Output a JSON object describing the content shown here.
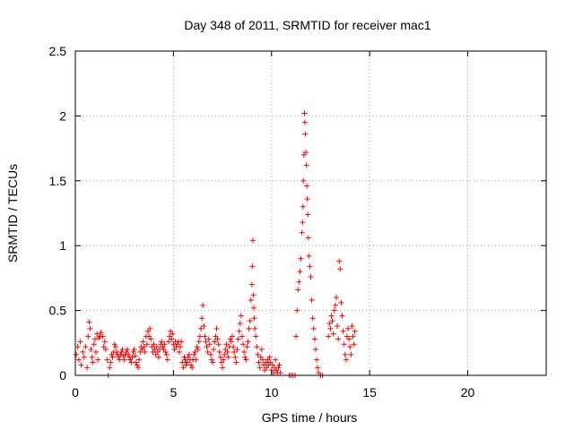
{
  "chart_data": {
    "type": "scatter",
    "title": "Day 348 of 2011, SRMTID for receiver mac1",
    "xlabel": "GPS time / hours",
    "ylabel": "SRMTID / TECUs",
    "xlim": [
      0,
      24
    ],
    "ylim": [
      0,
      2.5
    ],
    "xticks": [
      0,
      5,
      10,
      15,
      20
    ],
    "xtick_labels": [
      "0",
      "5",
      "10",
      "15",
      "20"
    ],
    "yticks": [
      0,
      0.5,
      1,
      1.5,
      2,
      2.5
    ],
    "ytick_labels": [
      "0",
      "0.5",
      "1",
      "1.5",
      "2",
      "2.5"
    ],
    "grid": true,
    "marker": "+",
    "series": [
      {
        "name": "mac1",
        "color": "#ff0000",
        "points": [
          [
            0.05,
            0.16
          ],
          [
            0.12,
            0.22
          ],
          [
            0.18,
            0.12
          ],
          [
            0.25,
            0.26
          ],
          [
            0.3,
            0.08
          ],
          [
            0.38,
            0.18
          ],
          [
            0.45,
            0.14
          ],
          [
            0.52,
            0.22
          ],
          [
            0.6,
            0.06
          ],
          [
            0.65,
            0.3
          ],
          [
            0.7,
            0.41
          ],
          [
            0.75,
            0.36
          ],
          [
            0.8,
            0.2
          ],
          [
            0.85,
            0.14
          ],
          [
            0.9,
            0.1
          ],
          [
            0.95,
            0.24
          ],
          [
            1.0,
            0.28
          ],
          [
            1.05,
            0.18
          ],
          [
            1.1,
            0.32
          ],
          [
            1.15,
            0.12
          ],
          [
            1.2,
            0.29
          ],
          [
            1.25,
            0.3
          ],
          [
            1.3,
            0.33
          ],
          [
            1.4,
            0.3
          ],
          [
            1.45,
            0.22
          ],
          [
            1.5,
            0.26
          ],
          [
            1.55,
            0.2
          ],
          [
            1.62,
            0.12
          ],
          [
            1.68,
            0.0
          ],
          [
            1.75,
            0.06
          ],
          [
            1.8,
            0.1
          ],
          [
            1.85,
            0.16
          ],
          [
            1.9,
            0.14
          ],
          [
            1.95,
            0.18
          ],
          [
            2.0,
            0.24
          ],
          [
            2.05,
            0.22
          ],
          [
            2.1,
            0.18
          ],
          [
            2.15,
            0.16
          ],
          [
            2.2,
            0.14
          ],
          [
            2.25,
            0.12
          ],
          [
            2.3,
            0.16
          ],
          [
            2.35,
            0.18
          ],
          [
            2.4,
            0.2
          ],
          [
            2.45,
            0.15
          ],
          [
            2.5,
            0.12
          ],
          [
            2.55,
            0.16
          ],
          [
            2.6,
            0.18
          ],
          [
            2.65,
            0.2
          ],
          [
            2.7,
            0.16
          ],
          [
            2.75,
            0.14
          ],
          [
            2.8,
            0.12
          ],
          [
            2.85,
            0.1
          ],
          [
            2.9,
            0.14
          ],
          [
            2.95,
            0.18
          ],
          [
            3.0,
            0.2
          ],
          [
            3.05,
            0.15
          ],
          [
            3.1,
            0.1
          ],
          [
            3.15,
            0.08
          ],
          [
            3.2,
            0.06
          ],
          [
            3.25,
            0.12
          ],
          [
            3.3,
            0.18
          ],
          [
            3.35,
            0.22
          ],
          [
            3.4,
            0.2
          ],
          [
            3.45,
            0.26
          ],
          [
            3.5,
            0.22
          ],
          [
            3.55,
            0.18
          ],
          [
            3.6,
            0.3
          ],
          [
            3.65,
            0.24
          ],
          [
            3.7,
            0.34
          ],
          [
            3.75,
            0.3
          ],
          [
            3.8,
            0.36
          ],
          [
            3.85,
            0.28
          ],
          [
            3.9,
            0.22
          ],
          [
            3.95,
            0.18
          ],
          [
            4.0,
            0.24
          ],
          [
            4.05,
            0.2
          ],
          [
            4.1,
            0.16
          ],
          [
            4.15,
            0.22
          ],
          [
            4.2,
            0.18
          ],
          [
            4.25,
            0.14
          ],
          [
            4.3,
            0.2
          ],
          [
            4.35,
            0.24
          ],
          [
            4.4,
            0.26
          ],
          [
            4.45,
            0.22
          ],
          [
            4.5,
            0.2
          ],
          [
            4.55,
            0.24
          ],
          [
            4.6,
            0.18
          ],
          [
            4.65,
            0.16
          ],
          [
            4.7,
            0.12
          ],
          [
            4.75,
            0.26
          ],
          [
            4.8,
            0.3
          ],
          [
            4.85,
            0.34
          ],
          [
            4.9,
            0.28
          ],
          [
            4.95,
            0.32
          ],
          [
            5.0,
            0.24
          ],
          [
            5.05,
            0.2
          ],
          [
            5.1,
            0.26
          ],
          [
            5.15,
            0.22
          ],
          [
            5.2,
            0.24
          ],
          [
            5.25,
            0.26
          ],
          [
            5.3,
            0.18
          ],
          [
            5.35,
            0.22
          ],
          [
            5.4,
            0.26
          ],
          [
            5.45,
            0.1
          ],
          [
            5.5,
            0.06
          ],
          [
            5.55,
            0.14
          ],
          [
            5.6,
            0.12
          ],
          [
            5.65,
            0.08
          ],
          [
            5.7,
            0.1
          ],
          [
            5.75,
            0.14
          ],
          [
            5.8,
            0.16
          ],
          [
            5.85,
            0.12
          ],
          [
            5.9,
            0.08
          ],
          [
            5.95,
            0.06
          ],
          [
            6.0,
            0.12
          ],
          [
            6.05,
            0.16
          ],
          [
            6.1,
            0.18
          ],
          [
            6.15,
            0.12
          ],
          [
            6.2,
            0.22
          ],
          [
            6.25,
            0.2
          ],
          [
            6.3,
            0.26
          ],
          [
            6.35,
            0.3
          ],
          [
            6.4,
            0.36
          ],
          [
            6.45,
            0.44
          ],
          [
            6.5,
            0.54
          ],
          [
            6.55,
            0.38
          ],
          [
            6.6,
            0.3
          ],
          [
            6.65,
            0.26
          ],
          [
            6.7,
            0.22
          ],
          [
            6.75,
            0.18
          ],
          [
            6.8,
            0.28
          ],
          [
            6.85,
            0.24
          ],
          [
            6.9,
            0.16
          ],
          [
            6.95,
            0.12
          ],
          [
            7.0,
            0.1
          ],
          [
            7.05,
            0.2
          ],
          [
            7.1,
            0.26
          ],
          [
            7.15,
            0.3
          ],
          [
            7.2,
            0.36
          ],
          [
            7.25,
            0.28
          ],
          [
            7.3,
            0.24
          ],
          [
            7.35,
            0.18
          ],
          [
            7.4,
            0.14
          ],
          [
            7.45,
            0.1
          ],
          [
            7.5,
            0.06
          ],
          [
            7.55,
            0.12
          ],
          [
            7.6,
            0.16
          ],
          [
            7.65,
            0.2
          ],
          [
            7.7,
            0.24
          ],
          [
            7.75,
            0.18
          ],
          [
            7.8,
            0.14
          ],
          [
            7.85,
            0.22
          ],
          [
            7.9,
            0.28
          ],
          [
            7.95,
            0.26
          ],
          [
            8.0,
            0.3
          ],
          [
            8.05,
            0.22
          ],
          [
            8.1,
            0.18
          ],
          [
            8.15,
            0.14
          ],
          [
            8.2,
            0.1
          ],
          [
            8.25,
            0.2
          ],
          [
            8.3,
            0.28
          ],
          [
            8.35,
            0.34
          ],
          [
            8.4,
            0.4
          ],
          [
            8.45,
            0.46
          ],
          [
            8.5,
            0.3
          ],
          [
            8.55,
            0.24
          ],
          [
            8.6,
            0.18
          ],
          [
            8.65,
            0.14
          ],
          [
            8.7,
            0.12
          ],
          [
            8.75,
            0.22
          ],
          [
            8.8,
            0.26
          ],
          [
            8.85,
            0.36
          ],
          [
            8.9,
            0.42
          ],
          [
            8.95,
            0.58
          ],
          [
            9.0,
            0.7
          ],
          [
            9.02,
            0.84
          ],
          [
            9.05,
            1.04
          ],
          [
            9.08,
            0.62
          ],
          [
            9.1,
            0.52
          ],
          [
            9.12,
            0.44
          ],
          [
            9.15,
            0.36
          ],
          [
            9.2,
            0.3
          ],
          [
            9.25,
            0.22
          ],
          [
            9.3,
            0.16
          ],
          [
            9.35,
            0.1
          ],
          [
            9.4,
            0.06
          ],
          [
            9.45,
            0.14
          ],
          [
            9.5,
            0.2
          ],
          [
            9.55,
            0.12
          ],
          [
            9.6,
            0.08
          ],
          [
            9.65,
            0.04
          ],
          [
            9.7,
            0.1
          ],
          [
            9.75,
            0.06
          ],
          [
            9.8,
            0.12
          ],
          [
            9.85,
            0.08
          ],
          [
            9.9,
            0.14
          ],
          [
            9.95,
            0.1
          ],
          [
            10.0,
            0.04
          ],
          [
            10.05,
            0.08
          ],
          [
            10.1,
            0.02
          ],
          [
            10.15,
            0.06
          ],
          [
            10.2,
            0.12
          ],
          [
            10.25,
            0.04
          ],
          [
            10.3,
            0.02
          ],
          [
            10.35,
            0.06
          ],
          [
            10.4,
            0.08
          ],
          [
            10.45,
            0.02
          ],
          [
            10.9,
            0.0
          ],
          [
            11.0,
            0.0
          ],
          [
            11.1,
            0.0
          ],
          [
            11.2,
            0.0
          ],
          [
            11.25,
            0.3
          ],
          [
            11.3,
            0.5
          ],
          [
            11.35,
            0.66
          ],
          [
            11.4,
            0.72
          ],
          [
            11.45,
            0.8
          ],
          [
            11.5,
            0.9
          ],
          [
            11.55,
            1.1
          ],
          [
            11.58,
            1.18
          ],
          [
            11.6,
            1.3
          ],
          [
            11.62,
            1.5
          ],
          [
            11.65,
            1.7
          ],
          [
            11.68,
            2.02
          ],
          [
            11.7,
            1.95
          ],
          [
            11.72,
            1.86
          ],
          [
            11.75,
            1.72
          ],
          [
            11.78,
            1.62
          ],
          [
            11.8,
            1.46
          ],
          [
            11.82,
            1.36
          ],
          [
            11.85,
            1.24
          ],
          [
            11.88,
            1.06
          ],
          [
            11.9,
            0.92
          ],
          [
            11.95,
            0.84
          ],
          [
            12.0,
            0.76
          ],
          [
            12.05,
            0.58
          ],
          [
            12.1,
            0.44
          ],
          [
            12.15,
            0.36
          ],
          [
            12.2,
            0.28
          ],
          [
            12.25,
            0.2
          ],
          [
            12.3,
            0.12
          ],
          [
            12.35,
            0.06
          ],
          [
            12.4,
            0.02
          ],
          [
            12.5,
            0.0
          ],
          [
            12.6,
            0.0
          ],
          [
            12.9,
            0.3
          ],
          [
            12.95,
            0.4
          ],
          [
            13.0,
            0.36
          ],
          [
            13.05,
            0.46
          ],
          [
            13.1,
            0.42
          ],
          [
            13.15,
            0.32
          ],
          [
            13.2,
            0.5
          ],
          [
            13.25,
            0.54
          ],
          [
            13.3,
            0.6
          ],
          [
            13.35,
            0.38
          ],
          [
            13.4,
            0.28
          ],
          [
            13.45,
            0.88
          ],
          [
            13.5,
            0.82
          ],
          [
            13.55,
            0.56
          ],
          [
            13.6,
            0.46
          ],
          [
            13.65,
            0.34
          ],
          [
            13.7,
            0.24
          ],
          [
            13.75,
            0.16
          ],
          [
            13.8,
            0.12
          ],
          [
            13.85,
            0.3
          ],
          [
            13.9,
            0.36
          ],
          [
            13.95,
            0.28
          ],
          [
            14.0,
            0.22
          ],
          [
            14.05,
            0.16
          ],
          [
            14.1,
            0.38
          ],
          [
            14.15,
            0.3
          ],
          [
            14.2,
            0.24
          ],
          [
            14.25,
            0.34
          ]
        ]
      }
    ]
  }
}
